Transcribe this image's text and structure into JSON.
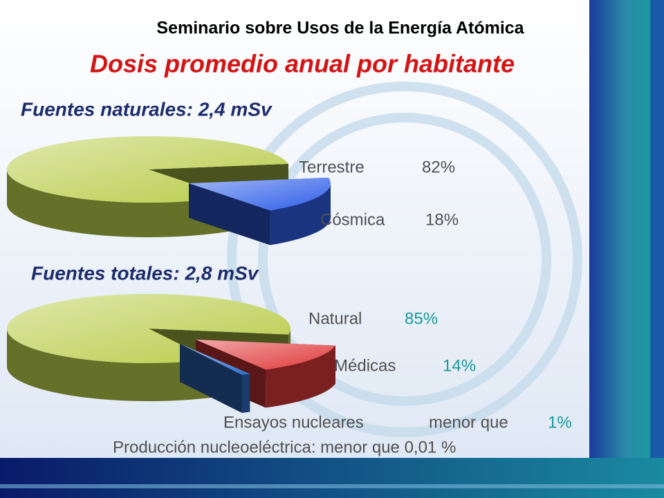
{
  "header": "Seminario sobre Usos de la Energía Atómica",
  "title": "Dosis promedio anual por habitante",
  "chart_data": [
    {
      "type": "pie",
      "title": "Fuentes naturales: 2,4 mSv",
      "categories": [
        "Terrestre",
        "Cósmica"
      ],
      "values": [
        82,
        18
      ],
      "value_labels": [
        "82%",
        "18%"
      ],
      "colors": [
        "#b8cc48",
        "#2f5fe8"
      ]
    },
    {
      "type": "pie",
      "title": "Fuentes totales: 2,8 mSv",
      "categories": [
        "Natural",
        "Médicas",
        "Ensayos nucleares"
      ],
      "values": [
        85,
        14,
        1
      ],
      "value_labels": [
        "85%",
        "14%",
        "1%"
      ],
      "qualifier": "menor que",
      "colors": [
        "#b8cc48",
        "#e03a3a",
        "#2f6fc8"
      ]
    }
  ],
  "note": "Producción nucleoeléctrica: menor que 0,01 %"
}
